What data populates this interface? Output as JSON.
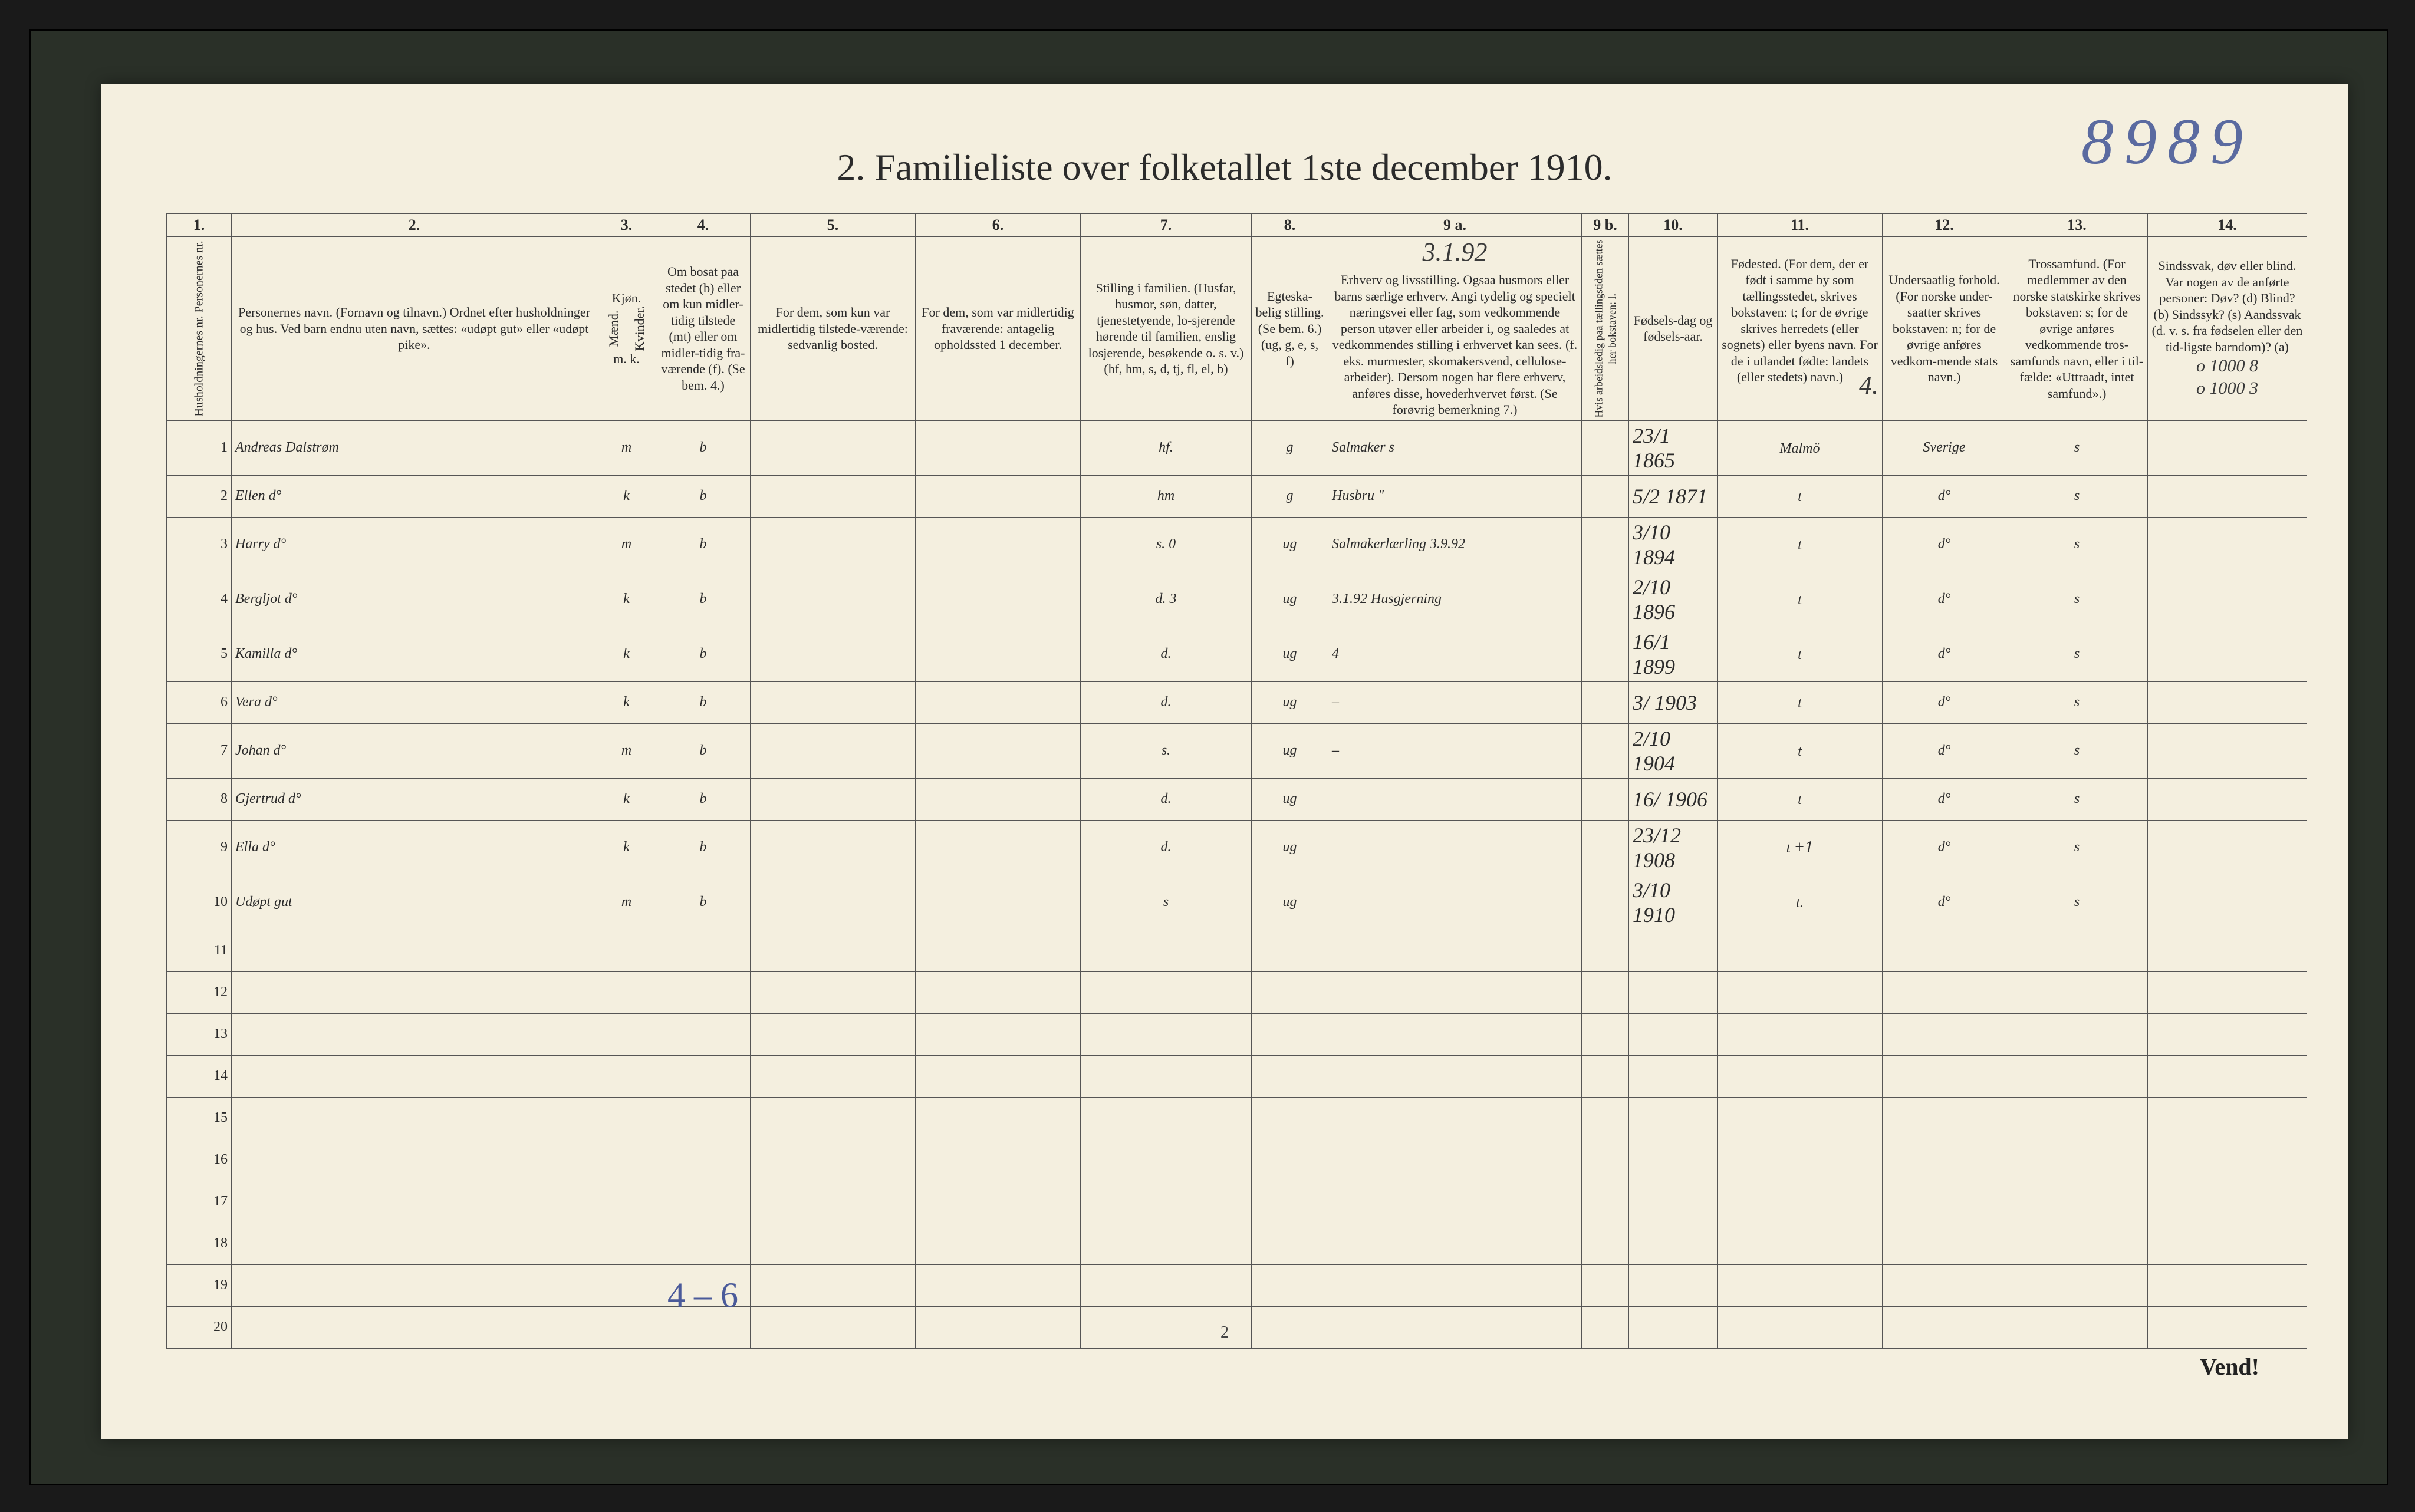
{
  "doc_number": "8989",
  "title": "2.  Familieliste over folketallet 1ste december 1910.",
  "columns": {
    "nums": [
      "1.",
      "2.",
      "3.",
      "4.",
      "5.",
      "6.",
      "7.",
      "8.",
      "9 a.",
      "9 b.",
      "10.",
      "11.",
      "12.",
      "13.",
      "14."
    ],
    "headers": {
      "c1": "Husholdningernes nr.\nPersonernes nr.",
      "c2": "Personernes navn.\n(Fornavn og tilnavn.)\nOrdnet efter husholdninger og hus.\nVed barn endnu uten navn, sættes: «udøpt gut» eller «udøpt pike».",
      "c3": "Kjøn.",
      "c3_sub_m": "Mænd.",
      "c3_sub_k": "Kvinder.",
      "c3_mk": "m.   k.",
      "c4": "Om bosat paa stedet (b) eller om kun midler-tidig tilstede (mt) eller om midler-tidig fra-værende (f). (Se bem. 4.)",
      "c5": "For dem, som kun var midlertidig tilstede-værende:\nsedvanlig bosted.",
      "c6": "For dem, som var midlertidig fraværende:\nantagelig opholdssted 1 december.",
      "c7": "Stilling i familien.\n(Husfar, husmor, søn, datter, tjenestetyende, lo-sjerende hørende til familien, enslig losjerende, besøkende o. s. v.)\n(hf, hm, s, d, tj, fl, el, b)",
      "c8": "Egteska-belig stilling.\n(Se bem. 6.)\n(ug, g, e, s, f)",
      "c9a": "Erhverv og livsstilling.\nOgsaa husmors eller barns særlige erhverv.\nAngi tydelig og specielt næringsvei eller fag, som vedkommende person utøver eller arbeider i, og saaledes at vedkommendes stilling i erhvervet kan sees. (f. eks. murmester, skomakersvend, cellulose-arbeider). Dersom nogen har flere erhverv, anføres disse, hovederhvervet først.\n(Se forøvrig bemerkning 7.)",
      "c9b": "Hvis arbeidsledig paa tællingstiden sættes her bokstaven: l.",
      "c10": "Fødsels-dag og fødsels-aar.",
      "c11": "Fødested.\n(For dem, der er født i samme by som tællingsstedet, skrives bokstaven: t; for de øvrige skrives herredets (eller sognets) eller byens navn. For de i utlandet fødte: landets (eller stedets) navn.)",
      "c11_note": "4.",
      "c12": "Undersaatlig forhold.\n(For norske under-saatter skrives bokstaven: n; for de øvrige anføres vedkom-mende stats navn.)",
      "c13": "Trossamfund.\n(For medlemmer av den norske statskirke skrives bokstaven: s; for de øvrige anføres vedkommende tros-samfunds navn, eller i til-fælde: «Uttraadt, intet samfund».)",
      "c14": "Sindssvak, døv eller blind.\nVar nogen av de anførte personer:\nDøv?        (d)\nBlind?      (b)\nSindssyk?   (s)\nAandssvak (d. v. s. fra fødselen eller den tid-ligste barndom)?  (a)"
    }
  },
  "margin_notes": {
    "c9a_top": "3.1.92",
    "c14_top1": "o 1000 8",
    "c14_top2": "o 1000 3"
  },
  "rows": [
    {
      "n": "1",
      "name": "Andreas Dalstrøm",
      "mk": "m",
      "res": "b",
      "fam": "hf.",
      "eg": "g",
      "work": "Salmaker s",
      "dob": "23/1 1865",
      "place": "Malmö",
      "nat": "Sverige",
      "rel": "s",
      "note": ""
    },
    {
      "n": "2",
      "name": "Ellen     d°",
      "mk": "k",
      "res": "b",
      "fam": "hm",
      "eg": "g",
      "work": "Husbru  \"",
      "dob": "5/2 1871",
      "place": "t",
      "nat": "d°",
      "rel": "s",
      "note": ""
    },
    {
      "n": "3",
      "name": "Harry     d°",
      "mk": "m",
      "res": "b",
      "fam": "s.   0",
      "eg": "ug",
      "work": "Salmakerlærling 3.9.92",
      "dob": "3/10 1894",
      "place": "t",
      "nat": "d°",
      "rel": "s",
      "note": ""
    },
    {
      "n": "4",
      "name": "Bergljot  d°",
      "mk": "k",
      "res": "b",
      "fam": "d.   3",
      "eg": "ug",
      "work": "3.1.92 Husgjerning",
      "dob": "2/10 1896",
      "place": "t",
      "nat": "d°",
      "rel": "s",
      "note": ""
    },
    {
      "n": "5",
      "name": "Kamilla   d°",
      "mk": "k",
      "res": "b",
      "fam": "d.",
      "eg": "ug",
      "work": "4",
      "dob": "16/1 1899",
      "place": "t",
      "nat": "d°",
      "rel": "s",
      "note": ""
    },
    {
      "n": "6",
      "name": "Vera      d°",
      "mk": "k",
      "res": "b",
      "fam": "d.",
      "eg": "ug",
      "work": "–",
      "dob": "3/ 1903",
      "place": "t",
      "nat": "d°",
      "rel": "s",
      "note": ""
    },
    {
      "n": "7",
      "name": "Johan     d°",
      "mk": "m",
      "res": "b",
      "fam": "s.",
      "eg": "ug",
      "work": "–",
      "dob": "2/10 1904",
      "place": "t",
      "nat": "d°",
      "rel": "s",
      "note": ""
    },
    {
      "n": "8",
      "name": "Gjertrud  d°",
      "mk": "k",
      "res": "b",
      "fam": "d.",
      "eg": "ug",
      "work": "",
      "dob": "16/ 1906",
      "place": "t",
      "nat": "d°",
      "rel": "s",
      "note": ""
    },
    {
      "n": "9",
      "name": "Ella      d°",
      "mk": "k",
      "res": "b",
      "fam": "d.",
      "eg": "ug",
      "work": "",
      "dob": "23/12 1908",
      "place": "t",
      "nat": "d°",
      "rel": "s",
      "note": "+1"
    },
    {
      "n": "10",
      "name": "Udøpt gut",
      "mk": "m",
      "res": "b",
      "fam": "s",
      "eg": "ug",
      "work": "",
      "dob": "3/10 1910",
      "place": "t.",
      "nat": "d°",
      "rel": "s",
      "note": ""
    },
    {
      "n": "11",
      "name": "",
      "mk": "",
      "res": "",
      "fam": "",
      "eg": "",
      "work": "",
      "dob": "",
      "place": "",
      "nat": "",
      "rel": "",
      "note": ""
    },
    {
      "n": "12",
      "name": "",
      "mk": "",
      "res": "",
      "fam": "",
      "eg": "",
      "work": "",
      "dob": "",
      "place": "",
      "nat": "",
      "rel": "",
      "note": ""
    },
    {
      "n": "13",
      "name": "",
      "mk": "",
      "res": "",
      "fam": "",
      "eg": "",
      "work": "",
      "dob": "",
      "place": "",
      "nat": "",
      "rel": "",
      "note": ""
    },
    {
      "n": "14",
      "name": "",
      "mk": "",
      "res": "",
      "fam": "",
      "eg": "",
      "work": "",
      "dob": "",
      "place": "",
      "nat": "",
      "rel": "",
      "note": ""
    },
    {
      "n": "15",
      "name": "",
      "mk": "",
      "res": "",
      "fam": "",
      "eg": "",
      "work": "",
      "dob": "",
      "place": "",
      "nat": "",
      "rel": "",
      "note": ""
    },
    {
      "n": "16",
      "name": "",
      "mk": "",
      "res": "",
      "fam": "",
      "eg": "",
      "work": "",
      "dob": "",
      "place": "",
      "nat": "",
      "rel": "",
      "note": ""
    },
    {
      "n": "17",
      "name": "",
      "mk": "",
      "res": "",
      "fam": "",
      "eg": "",
      "work": "",
      "dob": "",
      "place": "",
      "nat": "",
      "rel": "",
      "note": ""
    },
    {
      "n": "18",
      "name": "",
      "mk": "",
      "res": "",
      "fam": "",
      "eg": "",
      "work": "",
      "dob": "",
      "place": "",
      "nat": "",
      "rel": "",
      "note": ""
    },
    {
      "n": "19",
      "name": "",
      "mk": "",
      "res": "",
      "fam": "",
      "eg": "",
      "work": "",
      "dob": "",
      "place": "",
      "nat": "",
      "rel": "",
      "note": ""
    },
    {
      "n": "20",
      "name": "",
      "mk": "",
      "res": "",
      "fam": "",
      "eg": "",
      "work": "",
      "dob": "",
      "place": "",
      "nat": "",
      "rel": "",
      "note": ""
    }
  ],
  "footer_hand": "4 – 6",
  "page_num": "2",
  "vend": "Vend!",
  "colors": {
    "page_bg": "#f4efdf",
    "frame_bg": "#2a3028",
    "ink": "#3a3a3a",
    "pencil_blue": "#4a5a9a",
    "border": "#555555"
  }
}
